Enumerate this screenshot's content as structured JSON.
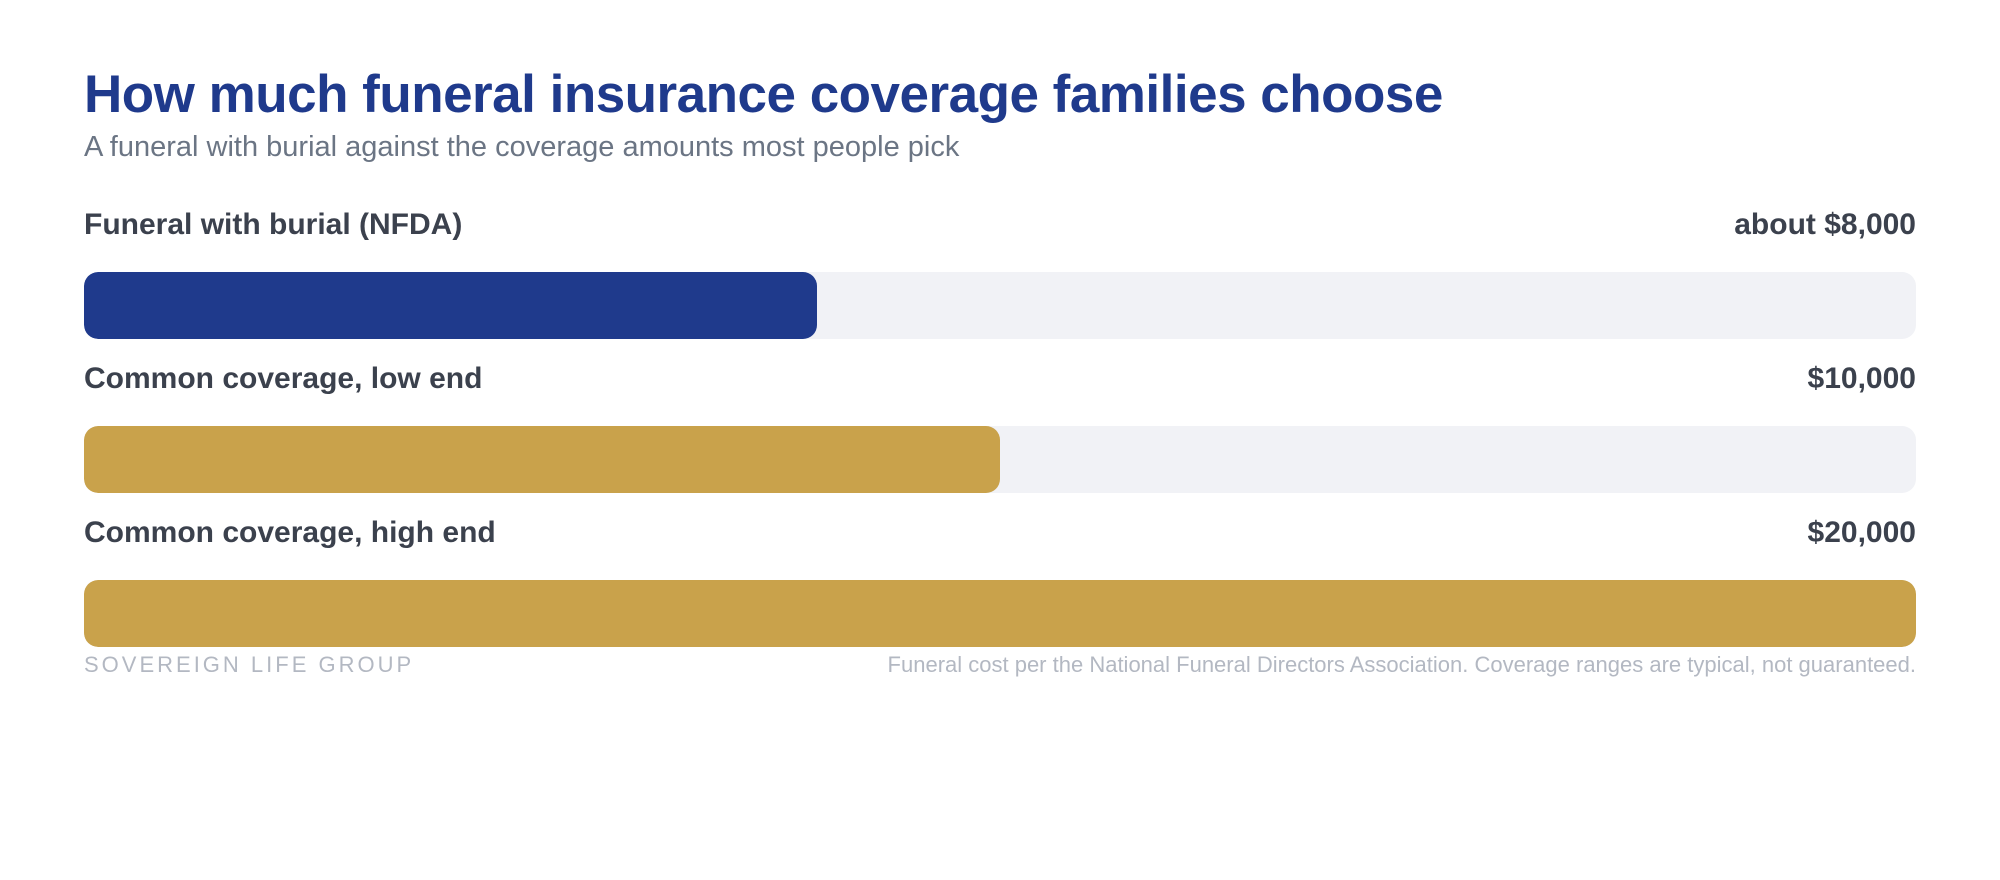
{
  "chart_data": {
    "type": "bar",
    "orientation": "horizontal",
    "title": "How much funeral insurance coverage families choose",
    "subtitle": "A funeral with burial against the coverage amounts most people pick",
    "xlim": [
      0,
      20000
    ],
    "grid": false,
    "categories": [
      "Funeral with burial (NFDA)",
      "Common coverage, low end",
      "Common coverage, high end"
    ],
    "values": [
      8000,
      10000,
      20000
    ],
    "value_labels": [
      "about $8,000",
      "$10,000",
      "$20,000"
    ],
    "bar_colors": [
      "#1f3a8c",
      "#c9a24b",
      "#c9a24b"
    ],
    "track_color": "#f1f2f6",
    "title_color": "#1f3a8c",
    "subtitle_color": "#6b7584",
    "label_color": "#3b414d",
    "footer_color": "#b3b8c2"
  },
  "footer": {
    "brand": "SOVEREIGN LIFE GROUP",
    "note": "Funeral cost per the National Funeral Directors Association. Coverage ranges are typical, not guaranteed."
  }
}
